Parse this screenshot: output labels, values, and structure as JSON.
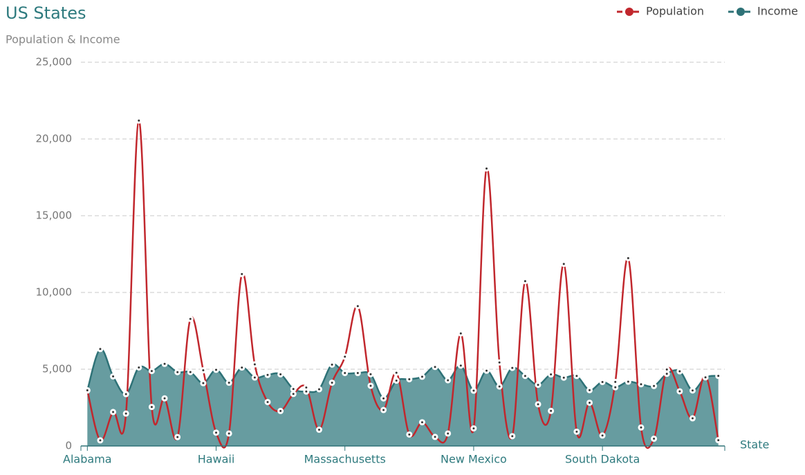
{
  "chart_data": {
    "type": "line",
    "title": "US States",
    "subtitle": "Population & Income",
    "x_label": "State",
    "categories": [
      "Alabama",
      null,
      null,
      null,
      null,
      null,
      null,
      null,
      null,
      null,
      "Hawaii",
      null,
      null,
      null,
      null,
      null,
      null,
      null,
      null,
      null,
      "Massachusetts",
      null,
      null,
      null,
      null,
      null,
      null,
      null,
      null,
      null,
      "New Mexico",
      null,
      null,
      null,
      null,
      null,
      null,
      null,
      null,
      null,
      "South Dakota",
      null,
      null,
      null,
      null,
      null,
      null,
      null,
      null,
      null
    ],
    "series": [
      {
        "name": "Population",
        "color": "#c1272d",
        "style": "line",
        "values": [
          3615,
          365,
          2212,
          2110,
          21198,
          2541,
          3100,
          579,
          8277,
          4931,
          868,
          813,
          11197,
          5313,
          2861,
          2280,
          3387,
          3806,
          1058,
          4122,
          5814,
          9111,
          3921,
          2341,
          4767,
          746,
          1544,
          590,
          812,
          7333,
          1144,
          18076,
          5441,
          637,
          10735,
          2715,
          2284,
          11860,
          931,
          2816,
          681,
          4173,
          12237,
          1203,
          472,
          4981,
          3559,
          1799,
          4589,
          376
        ]
      },
      {
        "name": "Income",
        "color": "#2e7277",
        "fill": "#679ca0",
        "style": "area",
        "values": [
          3624,
          6315,
          4530,
          3378,
          5114,
          4884,
          5348,
          4809,
          4815,
          4091,
          4963,
          4119,
          5107,
          4458,
          4628,
          4669,
          3712,
          3545,
          3694,
          5299,
          4755,
          4751,
          4675,
          3098,
          4254,
          4347,
          4508,
          5149,
          4281,
          5237,
          3601,
          4903,
          3875,
          5087,
          4561,
          3983,
          4660,
          4449,
          4558,
          3635,
          4167,
          3821,
          4188,
          4022,
          3907,
          4701,
          4864,
          3617,
          4468,
          4566
        ]
      }
    ],
    "ylim": [
      0,
      25000
    ],
    "yticks": [
      0,
      {
        "value": 5000,
        "label": "5,000"
      },
      {
        "value": 10000,
        "label": "10,000"
      },
      {
        "value": 15000,
        "label": "15,000"
      },
      {
        "value": 20000,
        "label": "20,000"
      },
      {
        "value": 25000,
        "label": "25,000"
      }
    ],
    "grid": true,
    "legend": "top-right"
  }
}
